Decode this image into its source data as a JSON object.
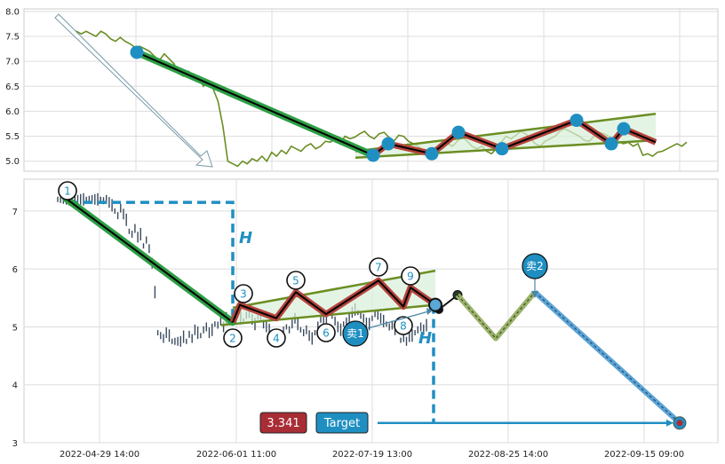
{
  "chart_data": [
    {
      "type": "line",
      "panel": "overview",
      "title": "",
      "xlabel": "",
      "ylabel": "",
      "y_ticks": [
        "8.0",
        "7.5",
        "7.0",
        "6.5",
        "6.0",
        "5.5",
        "5.0"
      ],
      "ylim": [
        4.8,
        8.05
      ],
      "grid": true,
      "series": [
        {
          "values": [
            7.85,
            7.83,
            7.76,
            7.6,
            7.6,
            7.55,
            7.6,
            7.55,
            7.5,
            7.6,
            7.55,
            7.45,
            7.4,
            7.48,
            7.4,
            7.35,
            7.28,
            7.3,
            7.25,
            7.2,
            7.1,
            7.02,
            7.15,
            7.05,
            6.95,
            6.75,
            6.7,
            6.8,
            6.65,
            6.7,
            6.5,
            6.6,
            6.45,
            6.2,
            5.7,
            5.0,
            4.95,
            4.9,
            5.0,
            4.95,
            5.05,
            5.0,
            5.1,
            5.0,
            5.18,
            5.1,
            5.22,
            5.15,
            5.3,
            5.25,
            5.2,
            5.3,
            5.35,
            5.25,
            5.3,
            5.4,
            5.38,
            5.45,
            5.35,
            5.5,
            5.45,
            5.48,
            5.55,
            5.6,
            5.5,
            5.45,
            5.55,
            5.58,
            5.48,
            5.4,
            5.52,
            5.5,
            5.4,
            5.35,
            5.3,
            5.22,
            5.18,
            5.15,
            5.2,
            5.25,
            5.35,
            5.3,
            5.4,
            5.5,
            5.4,
            5.3,
            5.25,
            5.3,
            5.2,
            5.15,
            5.25,
            5.38,
            5.5,
            5.45,
            5.52,
            5.6,
            5.55,
            5.45,
            5.35,
            5.3,
            5.4,
            5.45,
            5.5,
            5.6,
            5.65,
            5.6,
            5.55,
            5.5,
            5.42,
            5.4,
            5.5,
            5.58,
            5.55,
            5.5,
            5.45,
            5.4,
            5.35,
            5.38,
            5.3,
            5.35,
            5.12,
            5.15,
            5.1,
            5.18,
            5.2,
            5.25,
            5.3,
            5.35,
            5.3,
            5.38
          ]
        }
      ],
      "pattern_points": [
        {
          "label": "",
          "y": 7.18
        },
        {
          "label": "",
          "y": 5.12
        },
        {
          "label": "",
          "y": 5.35
        },
        {
          "label": "",
          "y": 5.15
        },
        {
          "label": "",
          "y": 5.58
        },
        {
          "label": "",
          "y": 5.25
        },
        {
          "label": "",
          "y": 5.82
        },
        {
          "label": "",
          "y": 5.35
        },
        {
          "label": "",
          "y": 5.65
        }
      ]
    },
    {
      "type": "line",
      "panel": "projection",
      "title": "",
      "xlabel": "",
      "ylabel": "",
      "x_ticks": [
        "2022-04-29 14:00",
        "2022-06-01 11:00",
        "2022-07-19 13:00",
        "2022-08-25 14:00",
        "2022-09-15 09:00"
      ],
      "y_ticks": [
        "7",
        "6",
        "5",
        "4",
        "3"
      ],
      "ylim": [
        3.0,
        7.55
      ],
      "grid": true,
      "pattern_points": [
        {
          "label": "1",
          "y": 7.22
        },
        {
          "label": "2",
          "y": 5.08
        },
        {
          "label": "3",
          "y": 5.38
        },
        {
          "label": "4",
          "y": 5.15
        },
        {
          "label": "5",
          "y": 5.6
        },
        {
          "label": "6",
          "y": 5.22
        },
        {
          "label": "7",
          "y": 5.8
        },
        {
          "label": "8",
          "y": 5.35
        },
        {
          "label": "9",
          "y": 5.68
        }
      ],
      "projected_path": [
        5.38,
        5.3,
        5.55,
        4.8,
        5.6,
        3.34
      ],
      "annotations": {
        "height_label": "H",
        "sell_labels": [
          "卖1",
          "卖2"
        ],
        "target_value": "3.341",
        "target_label": "Target"
      }
    }
  ],
  "colors": {
    "price_line": "#6b8e23",
    "trend_green": "#2e9e45",
    "trend_black": "#000000",
    "zigzag_red": "#b5443c",
    "channel_line": "#6b8e23",
    "channel_fill": "#d8efd8",
    "marker_blue": "#1f8fc2",
    "forecast_olive": "#9ab26a",
    "forecast_blue": "#5ba4d6",
    "target_red": "#a92d35",
    "target_blue": "#1f8fc2",
    "grid": "#dddddd",
    "axis": "#cccccc"
  }
}
